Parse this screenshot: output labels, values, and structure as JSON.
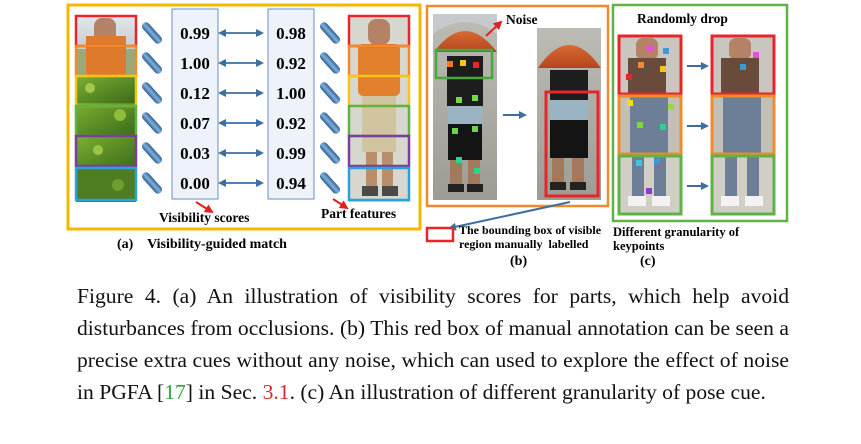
{
  "panel_a": {
    "left_scores": [
      "0.99",
      "1.00",
      "0.12",
      "0.07",
      "0.03",
      "0.00"
    ],
    "right_scores": [
      "0.98",
      "0.92",
      "1.00",
      "0.92",
      "0.99",
      "0.94"
    ],
    "visibility_label": "Visibility scores",
    "part_features_label": "Part features",
    "caption_label": "(a)    Visibility-guided match",
    "part_colors": [
      "#e8252b",
      "#f08a2a",
      "#f5c518",
      "#5fb246",
      "#7a3e9c",
      "#2aa3dd"
    ]
  },
  "panel_b": {
    "noise_label": "Noise",
    "bbox_label_line1": "The bounding box of visible",
    "bbox_label_line2": "region manually  labelled",
    "caption_label": "(b)"
  },
  "panel_c": {
    "randomly_drop_label": "Randomly drop",
    "granularity_line1": "Different granularity of",
    "granularity_line2": "keypoints",
    "caption_label": "(c)"
  },
  "caption": {
    "prefix": "Figure 4. (a) An illustration of visibility scores for parts, which help avoid disturbances from occlusions. (b) This red box of manual annotation can be seen a precise extra cues without any noise, which can used to explore the effect of noise in PGFA [",
    "ref": "17",
    "middle": "] in Sec. ",
    "sec": "3.1",
    "suffix": ". (c) An illustration of different granularity of pose cue."
  }
}
